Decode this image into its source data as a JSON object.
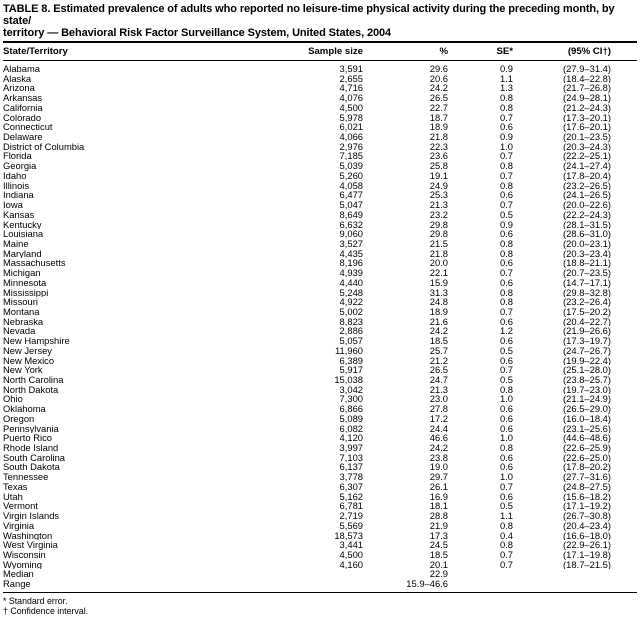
{
  "table": {
    "title_line1": "TABLE 8. Estimated prevalence of adults who reported no leisure-time physical activity during the preceding month, by state/",
    "title_line2": "territory — Behavioral Risk Factor Surveillance System, United States, 2004",
    "columns": [
      "State/Territory",
      "Sample size",
      "%",
      "SE*",
      "(95% CI†)"
    ],
    "rows": [
      [
        "Alabama",
        "3,591",
        "29.6",
        "0.9",
        "(27.9–31.4)"
      ],
      [
        "Alaska",
        "2,655",
        "20.6",
        "1.1",
        "(18.4–22.8)"
      ],
      [
        "Arizona",
        "4,716",
        "24.2",
        "1.3",
        "(21.7–26.8)"
      ],
      [
        "Arkansas",
        "4,076",
        "26.5",
        "0.8",
        "(24.9–28.1)"
      ],
      [
        "California",
        "4,500",
        "22.7",
        "0.8",
        "(21.2–24.3)"
      ],
      [
        "Colorado",
        "5,978",
        "18.7",
        "0.7",
        "(17.3–20.1)"
      ],
      [
        "Connecticut",
        "6,021",
        "18.9",
        "0.6",
        "(17.6–20.1)"
      ],
      [
        "Delaware",
        "4,066",
        "21.8",
        "0.9",
        "(20.1–23.5)"
      ],
      [
        "District of Columbia",
        "2,976",
        "22.3",
        "1.0",
        "(20.3–24.3)"
      ],
      [
        "Florida",
        "7,185",
        "23.6",
        "0.7",
        "(22.2–25.1)"
      ],
      [
        "Georgia",
        "5,039",
        "25.8",
        "0.8",
        "(24.1–27.4)"
      ],
      [
        "Idaho",
        "5,260",
        "19.1",
        "0.7",
        "(17.8–20.4)"
      ],
      [
        "Illinois",
        "4,058",
        "24.9",
        "0.8",
        "(23.2–26.5)"
      ],
      [
        "Indiana",
        "6,477",
        "25.3",
        "0.6",
        "(24.1–26.5)"
      ],
      [
        "Iowa",
        "5,047",
        "21.3",
        "0.7",
        "(20.0–22.6)"
      ],
      [
        "Kansas",
        "8,649",
        "23.2",
        "0.5",
        "(22.2–24.3)"
      ],
      [
        "Kentucky",
        "6,632",
        "29.8",
        "0.9",
        "(28.1–31.5)"
      ],
      [
        "Louisiana",
        "9,060",
        "29.8",
        "0.6",
        "(28.6–31.0)"
      ],
      [
        "Maine",
        "3,527",
        "21.5",
        "0.8",
        "(20.0–23.1)"
      ],
      [
        "Maryland",
        "4,435",
        "21.8",
        "0.8",
        "(20.3–23.4)"
      ],
      [
        "Massachusetts",
        "8,196",
        "20.0",
        "0.6",
        "(18.8–21.1)"
      ],
      [
        "Michigan",
        "4,939",
        "22.1",
        "0.7",
        "(20.7–23.5)"
      ],
      [
        "Minnesota",
        "4,440",
        "15.9",
        "0.6",
        "(14.7–17.1)"
      ],
      [
        "Mississippi",
        "5,248",
        "31.3",
        "0.8",
        "(29.8–32.8)"
      ],
      [
        "Missouri",
        "4,922",
        "24.8",
        "0.8",
        "(23.2–26.4)"
      ],
      [
        "Montana",
        "5,002",
        "18.9",
        "0.7",
        "(17.5–20.2)"
      ],
      [
        "Nebraska",
        "8,823",
        "21.6",
        "0.6",
        "(20.4–22.7)"
      ],
      [
        "Nevada",
        "2,886",
        "24.2",
        "1.2",
        "(21.9–26.6)"
      ],
      [
        "New Hampshire",
        "5,057",
        "18.5",
        "0.6",
        "(17.3–19.7)"
      ],
      [
        "New Jersey",
        "11,960",
        "25.7",
        "0.5",
        "(24.7–26.7)"
      ],
      [
        "New Mexico",
        "6,389",
        "21.2",
        "0.6",
        "(19.9–22.4)"
      ],
      [
        "New York",
        "5,917",
        "26.5",
        "0.7",
        "(25.1–28.0)"
      ],
      [
        "North Carolina",
        "15,038",
        "24.7",
        "0.5",
        "(23.8–25.7)"
      ],
      [
        "North Dakota",
        "3,042",
        "21.3",
        "0.8",
        "(19.7–23.0)"
      ],
      [
        "Ohio",
        "7,300",
        "23.0",
        "1.0",
        "(21.1–24.9)"
      ],
      [
        "Oklahoma",
        "6,866",
        "27.8",
        "0.6",
        "(26.5–29.0)"
      ],
      [
        "Oregon",
        "5,089",
        "17.2",
        "0.6",
        "(16.0–18.4)"
      ],
      [
        "Pennsylvania",
        "6,082",
        "24.4",
        "0.6",
        "(23.1–25.6)"
      ],
      [
        "Puerto Rico",
        "4,120",
        "46.6",
        "1.0",
        "(44.6–48.6)"
      ],
      [
        "Rhode Island",
        "3,997",
        "24.2",
        "0.8",
        "(22.6–25.9)"
      ],
      [
        "South Carolina",
        "7,103",
        "23.8",
        "0.6",
        "(22.6–25.0)"
      ],
      [
        "South Dakota",
        "6,137",
        "19.0",
        "0.6",
        "(17.8–20.2)"
      ],
      [
        "Tennessee",
        "3,778",
        "29.7",
        "1.0",
        "(27.7–31.6)"
      ],
      [
        "Texas",
        "6,307",
        "26.1",
        "0.7",
        "(24.8–27.5)"
      ],
      [
        "Utah",
        "5,162",
        "16.9",
        "0.6",
        "(15.6–18.2)"
      ],
      [
        "Vermont",
        "6,781",
        "18.1",
        "0.5",
        "(17.1–19.2)"
      ],
      [
        "Virgin Islands",
        "2,719",
        "28.8",
        "1.1",
        "(26.7–30.8)"
      ],
      [
        "Virginia",
        "5,569",
        "21.9",
        "0.8",
        "(20.4–23.4)"
      ],
      [
        "Washington",
        "18,573",
        "17.3",
        "0.4",
        "(16.6–18.0)"
      ],
      [
        "West Virginia",
        "3,441",
        "24.5",
        "0.8",
        "(22.9–26.1)"
      ],
      [
        "Wisconsin",
        "4,500",
        "18.5",
        "0.7",
        "(17.1–19.8)"
      ],
      [
        "Wyoming",
        "4,160",
        "20.1",
        "0.7",
        "(18.7–21.5)"
      ]
    ],
    "summary_rows": [
      [
        "Median",
        "",
        "22.9",
        "",
        ""
      ],
      [
        "Range",
        "",
        "15.9–46.6",
        "",
        ""
      ]
    ],
    "footnotes": [
      "* Standard error.",
      "† Confidence interval."
    ]
  }
}
